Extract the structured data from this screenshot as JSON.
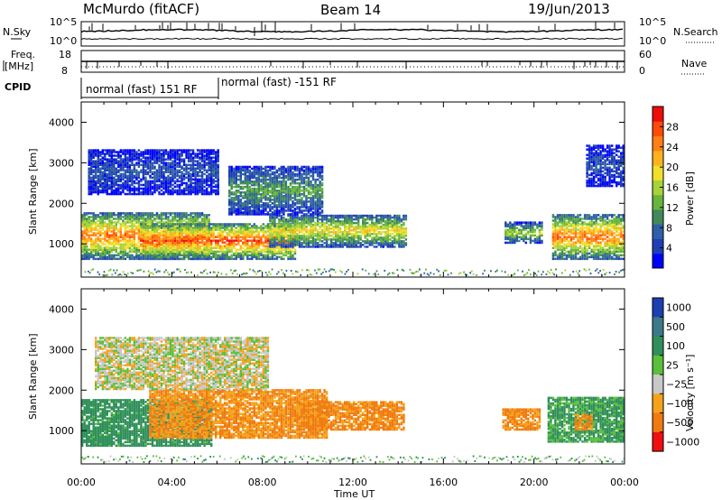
{
  "header": {
    "title": "McMurdo (fitACF)",
    "beam": "Beam 14",
    "date": "19/Jun/2013"
  },
  "status_panels": {
    "nsky_label": "N.Sky",
    "nsearch_label": "N.Search",
    "nsky_ticks": [
      "10^5",
      "10^0"
    ],
    "nsearch_ticks": [
      "10^5",
      "10^0"
    ],
    "freq_label_1": "Freq.",
    "freq_label_2": "[MHz]",
    "freq_ticks": [
      "18",
      "8"
    ],
    "nave_label": "Nave",
    "nave_ticks": [
      "60",
      "0"
    ],
    "cpid_label": "CPID",
    "cpid_segments": [
      "normal (fast) 151 RF",
      "normal (fast) -151 RF"
    ]
  },
  "chart_data": [
    {
      "type": "heatmap",
      "name": "power",
      "title": "",
      "xlabel": "Time UT",
      "ylabel": "Slant Range [km]",
      "x_ticks": [
        "00:00",
        "04:00",
        "08:00",
        "12:00",
        "16:00",
        "20:00",
        "00:00"
      ],
      "x_range_hours": [
        0,
        24
      ],
      "y_ticks": [
        1000,
        2000,
        3000,
        4000
      ],
      "y_range_km": [
        180,
        4500
      ],
      "colorbar": {
        "label": "Power [dB]",
        "ticks": [
          4,
          8,
          12,
          16,
          20,
          24,
          28
        ],
        "range": [
          0,
          32
        ],
        "colors": [
          "#0000ff",
          "#1e3fb4",
          "#2f5fa8",
          "#3f8a5a",
          "#68b43c",
          "#a6d33a",
          "#f2df2a",
          "#ffb21e",
          "#ff7f14",
          "#ff4a0a",
          "#ee0d0d"
        ]
      },
      "regions": [
        {
          "start_h": 0.0,
          "end_h": 5.6,
          "range_km": [
            600,
            1750
          ],
          "peak_db": 26
        },
        {
          "start_h": 2.6,
          "end_h": 9.4,
          "range_km": [
            600,
            1500
          ],
          "peak_db": 28
        },
        {
          "start_h": 8.3,
          "end_h": 14.3,
          "range_km": [
            900,
            1700
          ],
          "peak_db": 20
        },
        {
          "start_h": 0.3,
          "end_h": 6.0,
          "range_km": [
            2200,
            3300
          ],
          "peak_db": 6
        },
        {
          "start_h": 6.5,
          "end_h": 10.6,
          "range_km": [
            1700,
            2900
          ],
          "peak_db": 12
        },
        {
          "start_h": 18.7,
          "end_h": 20.4,
          "range_km": [
            1000,
            1500
          ],
          "peak_db": 16
        },
        {
          "start_h": 20.8,
          "end_h": 24.0,
          "range_km": [
            600,
            1700
          ],
          "peak_db": 26
        },
        {
          "start_h": 22.3,
          "end_h": 24.0,
          "range_km": [
            2400,
            3400
          ],
          "peak_db": 6
        }
      ]
    },
    {
      "type": "heatmap",
      "name": "velocity",
      "title": "",
      "xlabel": "Time UT",
      "ylabel": "Slant Range [km]",
      "x_ticks": [
        "00:00",
        "04:00",
        "08:00",
        "12:00",
        "16:00",
        "20:00",
        "00:00"
      ],
      "x_range_hours": [
        0,
        24
      ],
      "y_ticks": [
        1000,
        2000,
        3000,
        4000
      ],
      "y_range_km": [
        180,
        4500
      ],
      "colorbar": {
        "label": "Velocity [m s⁻¹]",
        "ticks": [
          "1000",
          "500",
          "100",
          "25",
          "−25",
          "−100",
          "−500",
          "−1000"
        ],
        "colors": [
          "#1d3fb0",
          "#3a7a8a",
          "#2f8f5a",
          "#5bbf3c",
          "#c8c8c8",
          "#f5a21a",
          "#f07a10",
          "#ee1010"
        ]
      },
      "regions": [
        {
          "start_h": 0.0,
          "end_h": 5.7,
          "range_km": [
            600,
            1750
          ],
          "velocity": 150
        },
        {
          "start_h": 3.0,
          "end_h": 10.8,
          "range_km": [
            800,
            2000
          ],
          "velocity": -100
        },
        {
          "start_h": 9.5,
          "end_h": 14.2,
          "range_km": [
            1000,
            1700
          ],
          "velocity": -120
        },
        {
          "start_h": 0.6,
          "end_h": 8.2,
          "range_km": [
            2000,
            3300
          ],
          "velocity": 0
        },
        {
          "start_h": 18.6,
          "end_h": 20.3,
          "range_km": [
            1000,
            1500
          ],
          "velocity": -120
        },
        {
          "start_h": 20.6,
          "end_h": 24.0,
          "range_km": [
            700,
            1800
          ],
          "velocity": 120
        },
        {
          "start_h": 21.8,
          "end_h": 22.6,
          "range_km": [
            1000,
            1400
          ],
          "velocity": -100
        }
      ]
    }
  ]
}
